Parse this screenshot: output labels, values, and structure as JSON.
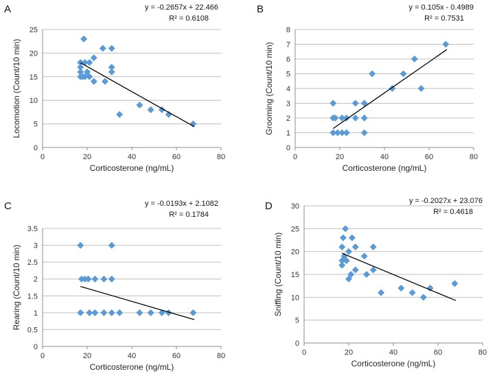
{
  "figure": {
    "accent_color": "#5b9bd5",
    "grid_color": "#bfbfbf",
    "trend_color": "#000000"
  },
  "chart_data": [
    {
      "panel": "A",
      "type": "scatter",
      "xlabel": "Corticosterone (ng/mL)",
      "ylabel": "Locomotion (Count/10 min)",
      "xlim": [
        0,
        80
      ],
      "ylim": [
        0,
        25
      ],
      "xticks": [
        0,
        20,
        40,
        60,
        80
      ],
      "yticks": [
        0,
        5,
        10,
        15,
        20,
        25
      ],
      "equation": "y = -0.2657x + 22.466",
      "r2": "R² = 0.6108",
      "trend": {
        "slope": -0.2657,
        "intercept": 22.466,
        "x_range": [
          17,
          68
        ]
      },
      "points": [
        {
          "x": 18.5,
          "y": 23
        },
        {
          "x": 27,
          "y": 21
        },
        {
          "x": 31,
          "y": 21
        },
        {
          "x": 23,
          "y": 19
        },
        {
          "x": 17,
          "y": 18
        },
        {
          "x": 19,
          "y": 18
        },
        {
          "x": 21,
          "y": 18
        },
        {
          "x": 17,
          "y": 17
        },
        {
          "x": 31,
          "y": 17
        },
        {
          "x": 17,
          "y": 16
        },
        {
          "x": 20,
          "y": 16
        },
        {
          "x": 31,
          "y": 16
        },
        {
          "x": 17,
          "y": 15
        },
        {
          "x": 18,
          "y": 15
        },
        {
          "x": 19,
          "y": 15
        },
        {
          "x": 21,
          "y": 15
        },
        {
          "x": 23,
          "y": 14
        },
        {
          "x": 28,
          "y": 14
        },
        {
          "x": 43.5,
          "y": 9
        },
        {
          "x": 48.5,
          "y": 8
        },
        {
          "x": 53.5,
          "y": 8
        },
        {
          "x": 34.5,
          "y": 7
        },
        {
          "x": 56.5,
          "y": 7
        },
        {
          "x": 67.5,
          "y": 5
        }
      ]
    },
    {
      "panel": "B",
      "type": "scatter",
      "xlabel": "Corticosterone (ng/mL)",
      "ylabel": "Grooming (Count/10 min)",
      "xlim": [
        0,
        80
      ],
      "ylim": [
        0,
        8
      ],
      "xticks": [
        0,
        20,
        40,
        60,
        80
      ],
      "yticks": [
        0,
        1,
        2,
        3,
        4,
        5,
        6,
        7,
        8
      ],
      "equation": "y = 0.105x - 0.4989",
      "r2": "R² = 0.7531",
      "trend": {
        "slope": 0.105,
        "intercept": -0.4989,
        "x_range": [
          17,
          68
        ]
      },
      "points": [
        {
          "x": 67.5,
          "y": 7
        },
        {
          "x": 53.5,
          "y": 6
        },
        {
          "x": 34.5,
          "y": 5
        },
        {
          "x": 48.5,
          "y": 5
        },
        {
          "x": 43.5,
          "y": 4
        },
        {
          "x": 56.5,
          "y": 4
        },
        {
          "x": 17,
          "y": 3
        },
        {
          "x": 27,
          "y": 3
        },
        {
          "x": 31,
          "y": 3
        },
        {
          "x": 17,
          "y": 2
        },
        {
          "x": 18,
          "y": 2
        },
        {
          "x": 21,
          "y": 2
        },
        {
          "x": 23,
          "y": 2
        },
        {
          "x": 27,
          "y": 2
        },
        {
          "x": 31,
          "y": 2
        },
        {
          "x": 17,
          "y": 1
        },
        {
          "x": 19,
          "y": 1
        },
        {
          "x": 21,
          "y": 1
        },
        {
          "x": 23,
          "y": 1
        },
        {
          "x": 31,
          "y": 1
        }
      ]
    },
    {
      "panel": "C",
      "type": "scatter",
      "xlabel": "Corticosterone (ng/mL)",
      "ylabel": "Rearing (Count/10 min)",
      "xlim": [
        0,
        80
      ],
      "ylim": [
        0,
        3.5
      ],
      "xticks": [
        0,
        20,
        40,
        60,
        80
      ],
      "yticks": [
        0,
        0.5,
        1,
        1.5,
        2,
        2.5,
        3,
        3.5
      ],
      "equation": "y = -0.0193x + 2.1082",
      "r2": "R² = 0.1784",
      "trend": {
        "slope": -0.0193,
        "intercept": 2.1082,
        "x_range": [
          17,
          68
        ]
      },
      "points": [
        {
          "x": 17,
          "y": 3
        },
        {
          "x": 31,
          "y": 3
        },
        {
          "x": 17.5,
          "y": 2
        },
        {
          "x": 19,
          "y": 2
        },
        {
          "x": 20.5,
          "y": 2
        },
        {
          "x": 23.5,
          "y": 2
        },
        {
          "x": 27.5,
          "y": 2
        },
        {
          "x": 31,
          "y": 2
        },
        {
          "x": 17,
          "y": 1
        },
        {
          "x": 21,
          "y": 1
        },
        {
          "x": 23.5,
          "y": 1
        },
        {
          "x": 27.5,
          "y": 1
        },
        {
          "x": 31,
          "y": 1
        },
        {
          "x": 34.5,
          "y": 1
        },
        {
          "x": 43.5,
          "y": 1
        },
        {
          "x": 48.5,
          "y": 1
        },
        {
          "x": 53.5,
          "y": 1
        },
        {
          "x": 56.5,
          "y": 1
        },
        {
          "x": 67.5,
          "y": 1
        }
      ]
    },
    {
      "panel": "D",
      "type": "scatter",
      "xlabel": "Corticosterone (ng/mL)",
      "ylabel": "Sniffing (Count/10 min)",
      "xlim": [
        0,
        80
      ],
      "ylim": [
        0,
        30
      ],
      "xticks": [
        0,
        20,
        40,
        60,
        80
      ],
      "yticks": [
        0,
        5,
        10,
        15,
        20,
        25,
        30
      ],
      "equation": "y = -0.2027x + 23.076",
      "r2": "R² = 0.4618",
      "trend": {
        "slope": -0.2027,
        "intercept": 23.076,
        "x_range": [
          17,
          68
        ]
      },
      "points": [
        {
          "x": 18.5,
          "y": 25
        },
        {
          "x": 17.5,
          "y": 23
        },
        {
          "x": 21.5,
          "y": 23
        },
        {
          "x": 17,
          "y": 21
        },
        {
          "x": 23,
          "y": 21
        },
        {
          "x": 31,
          "y": 21
        },
        {
          "x": 20,
          "y": 20
        },
        {
          "x": 27,
          "y": 19
        },
        {
          "x": 17,
          "y": 18
        },
        {
          "x": 18,
          "y": 19
        },
        {
          "x": 19,
          "y": 18
        },
        {
          "x": 17,
          "y": 17
        },
        {
          "x": 23,
          "y": 16
        },
        {
          "x": 31,
          "y": 16
        },
        {
          "x": 21,
          "y": 15
        },
        {
          "x": 28,
          "y": 15
        },
        {
          "x": 20,
          "y": 14
        },
        {
          "x": 56.5,
          "y": 12
        },
        {
          "x": 43.5,
          "y": 12
        },
        {
          "x": 34.5,
          "y": 11
        },
        {
          "x": 48.5,
          "y": 11
        },
        {
          "x": 53.5,
          "y": 10
        },
        {
          "x": 67.5,
          "y": 13
        }
      ]
    }
  ]
}
